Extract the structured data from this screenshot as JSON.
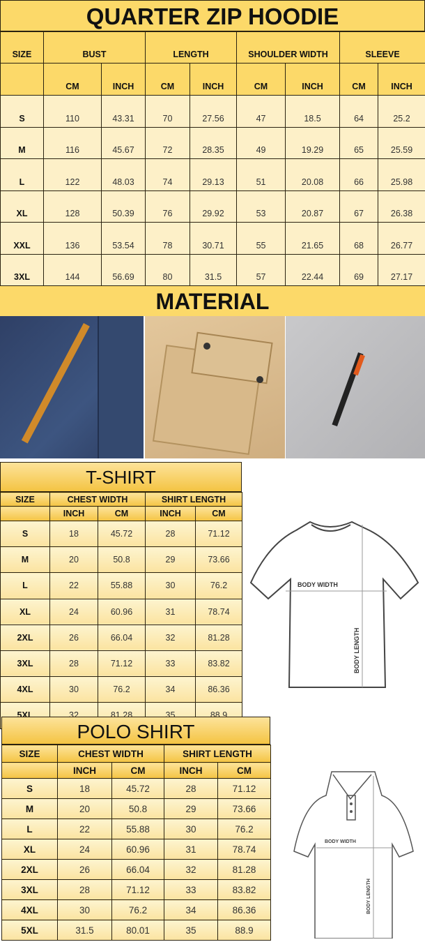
{
  "hoodie": {
    "title": "QUARTER ZIP HOODIE",
    "headers": [
      "SIZE",
      "BUST",
      "LENGTH",
      "SHOULDER WIDTH",
      "SLEEVE"
    ],
    "subheaders": [
      "CM",
      "INCH",
      "CM",
      "INCH",
      "CM",
      "INCH",
      "CM",
      "INCH"
    ],
    "rows": [
      [
        "S",
        "110",
        "43.31",
        "70",
        "27.56",
        "47",
        "18.5",
        "64",
        "25.2"
      ],
      [
        "M",
        "116",
        "45.67",
        "72",
        "28.35",
        "49",
        "19.29",
        "65",
        "25.59"
      ],
      [
        "L",
        "122",
        "48.03",
        "74",
        "29.13",
        "51",
        "20.08",
        "66",
        "25.98"
      ],
      [
        "XL",
        "128",
        "50.39",
        "76",
        "29.92",
        "53",
        "20.87",
        "67",
        "26.38"
      ],
      [
        "XXL",
        "136",
        "53.54",
        "78",
        "30.71",
        "55",
        "21.65",
        "68",
        "26.77"
      ],
      [
        "3XL",
        "144",
        "56.69",
        "80",
        "31.5",
        "57",
        "22.44",
        "69",
        "27.17"
      ]
    ]
  },
  "material": {
    "title": "MATERIAL"
  },
  "tshirt": {
    "title": "T-SHIRT",
    "headers": [
      "SIZE",
      "CHEST WIDTH",
      "SHIRT LENGTH"
    ],
    "subheaders": [
      "INCH",
      "CM",
      "INCH",
      "CM"
    ],
    "rows": [
      [
        "S",
        "18",
        "45.72",
        "28",
        "71.12"
      ],
      [
        "M",
        "20",
        "50.8",
        "29",
        "73.66"
      ],
      [
        "L",
        "22",
        "55.88",
        "30",
        "76.2"
      ],
      [
        "XL",
        "24",
        "60.96",
        "31",
        "78.74"
      ],
      [
        "2XL",
        "26",
        "66.04",
        "32",
        "81.28"
      ],
      [
        "3XL",
        "28",
        "71.12",
        "33",
        "83.82"
      ],
      [
        "4XL",
        "30",
        "76.2",
        "34",
        "86.36"
      ],
      [
        "5XL",
        "32",
        "81.28",
        "35",
        "88.9"
      ]
    ],
    "diagram": {
      "width_label": "BODY WIDTH",
      "length_label": "BODY LENGTH"
    }
  },
  "polo": {
    "title": "POLO SHIRT",
    "headers": [
      "SIZE",
      "CHEST WIDTH",
      "SHIRT LENGTH"
    ],
    "subheaders": [
      "INCH",
      "CM",
      "INCH",
      "CM"
    ],
    "rows": [
      [
        "S",
        "18",
        "45.72",
        "28",
        "71.12"
      ],
      [
        "M",
        "20",
        "50.8",
        "29",
        "73.66"
      ],
      [
        "L",
        "22",
        "55.88",
        "30",
        "76.2"
      ],
      [
        "XL",
        "24",
        "60.96",
        "31",
        "78.74"
      ],
      [
        "2XL",
        "26",
        "66.04",
        "32",
        "81.28"
      ],
      [
        "3XL",
        "28",
        "71.12",
        "33",
        "83.82"
      ],
      [
        "4XL",
        "30",
        "76.2",
        "34",
        "86.36"
      ],
      [
        "5XL",
        "31.5",
        "80.01",
        "35",
        "88.9"
      ]
    ],
    "diagram": {
      "width_label": "BODY WIDTH",
      "length_label": "BODY LENGTH"
    }
  },
  "colors": {
    "header": "#fcd969",
    "cell": "#fdf0c8",
    "border": "#2a2210"
  }
}
